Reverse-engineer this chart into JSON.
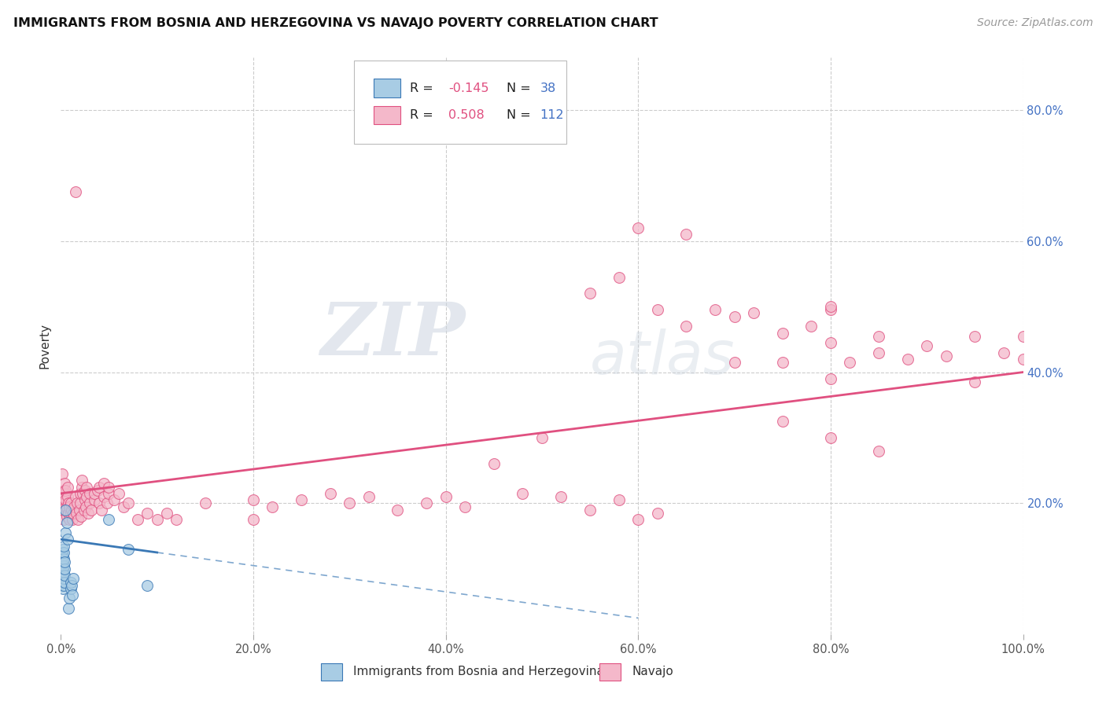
{
  "title": "IMMIGRANTS FROM BOSNIA AND HERZEGOVINA VS NAVAJO POVERTY CORRELATION CHART",
  "source": "Source: ZipAtlas.com",
  "ylabel": "Poverty",
  "xlim": [
    0.0,
    1.0
  ],
  "ylim": [
    0.0,
    0.88
  ],
  "blue_color": "#a8cce4",
  "pink_color": "#f4b8ca",
  "blue_line_color": "#3a78b5",
  "pink_line_color": "#e05080",
  "blue_scatter": [
    [
      0.001,
      0.075
    ],
    [
      0.001,
      0.085
    ],
    [
      0.001,
      0.095
    ],
    [
      0.001,
      0.105
    ],
    [
      0.001,
      0.115
    ],
    [
      0.001,
      0.125
    ],
    [
      0.002,
      0.07
    ],
    [
      0.002,
      0.08
    ],
    [
      0.002,
      0.09
    ],
    [
      0.002,
      0.1
    ],
    [
      0.002,
      0.11
    ],
    [
      0.002,
      0.12
    ],
    [
      0.002,
      0.13
    ],
    [
      0.003,
      0.075
    ],
    [
      0.003,
      0.085
    ],
    [
      0.003,
      0.095
    ],
    [
      0.003,
      0.105
    ],
    [
      0.003,
      0.115
    ],
    [
      0.003,
      0.125
    ],
    [
      0.003,
      0.135
    ],
    [
      0.004,
      0.08
    ],
    [
      0.004,
      0.09
    ],
    [
      0.004,
      0.1
    ],
    [
      0.004,
      0.11
    ],
    [
      0.005,
      0.155
    ],
    [
      0.005,
      0.19
    ],
    [
      0.006,
      0.17
    ],
    [
      0.007,
      0.145
    ],
    [
      0.008,
      0.04
    ],
    [
      0.009,
      0.055
    ],
    [
      0.01,
      0.07
    ],
    [
      0.01,
      0.08
    ],
    [
      0.011,
      0.075
    ],
    [
      0.012,
      0.06
    ],
    [
      0.013,
      0.085
    ],
    [
      0.05,
      0.175
    ],
    [
      0.07,
      0.13
    ],
    [
      0.09,
      0.075
    ]
  ],
  "pink_scatter": [
    [
      0.001,
      0.245
    ],
    [
      0.002,
      0.195
    ],
    [
      0.002,
      0.21
    ],
    [
      0.003,
      0.22
    ],
    [
      0.003,
      0.175
    ],
    [
      0.003,
      0.19
    ],
    [
      0.004,
      0.2
    ],
    [
      0.004,
      0.215
    ],
    [
      0.004,
      0.23
    ],
    [
      0.005,
      0.195
    ],
    [
      0.005,
      0.205
    ],
    [
      0.005,
      0.22
    ],
    [
      0.006,
      0.18
    ],
    [
      0.006,
      0.195
    ],
    [
      0.007,
      0.21
    ],
    [
      0.007,
      0.225
    ],
    [
      0.008,
      0.185
    ],
    [
      0.008,
      0.2
    ],
    [
      0.009,
      0.175
    ],
    [
      0.009,
      0.195
    ],
    [
      0.01,
      0.185
    ],
    [
      0.01,
      0.2
    ],
    [
      0.011,
      0.19
    ],
    [
      0.012,
      0.175
    ],
    [
      0.013,
      0.185
    ],
    [
      0.014,
      0.195
    ],
    [
      0.015,
      0.675
    ],
    [
      0.015,
      0.21
    ],
    [
      0.016,
      0.185
    ],
    [
      0.017,
      0.2
    ],
    [
      0.018,
      0.175
    ],
    [
      0.019,
      0.19
    ],
    [
      0.02,
      0.2
    ],
    [
      0.02,
      0.215
    ],
    [
      0.021,
      0.18
    ],
    [
      0.022,
      0.225
    ],
    [
      0.022,
      0.235
    ],
    [
      0.023,
      0.215
    ],
    [
      0.024,
      0.19
    ],
    [
      0.025,
      0.205
    ],
    [
      0.025,
      0.22
    ],
    [
      0.026,
      0.195
    ],
    [
      0.027,
      0.21
    ],
    [
      0.027,
      0.225
    ],
    [
      0.028,
      0.185
    ],
    [
      0.03,
      0.2
    ],
    [
      0.03,
      0.215
    ],
    [
      0.032,
      0.19
    ],
    [
      0.035,
      0.205
    ],
    [
      0.035,
      0.215
    ],
    [
      0.038,
      0.22
    ],
    [
      0.04,
      0.2
    ],
    [
      0.04,
      0.225
    ],
    [
      0.042,
      0.19
    ],
    [
      0.045,
      0.21
    ],
    [
      0.045,
      0.23
    ],
    [
      0.048,
      0.2
    ],
    [
      0.05,
      0.215
    ],
    [
      0.05,
      0.225
    ],
    [
      0.055,
      0.205
    ],
    [
      0.06,
      0.215
    ],
    [
      0.065,
      0.195
    ],
    [
      0.07,
      0.2
    ],
    [
      0.08,
      0.175
    ],
    [
      0.09,
      0.185
    ],
    [
      0.1,
      0.175
    ],
    [
      0.11,
      0.185
    ],
    [
      0.12,
      0.175
    ],
    [
      0.15,
      0.2
    ],
    [
      0.2,
      0.205
    ],
    [
      0.2,
      0.175
    ],
    [
      0.22,
      0.195
    ],
    [
      0.25,
      0.205
    ],
    [
      0.28,
      0.215
    ],
    [
      0.3,
      0.2
    ],
    [
      0.32,
      0.21
    ],
    [
      0.35,
      0.19
    ],
    [
      0.38,
      0.2
    ],
    [
      0.4,
      0.21
    ],
    [
      0.42,
      0.195
    ],
    [
      0.45,
      0.26
    ],
    [
      0.48,
      0.215
    ],
    [
      0.5,
      0.3
    ],
    [
      0.52,
      0.21
    ],
    [
      0.55,
      0.19
    ],
    [
      0.58,
      0.205
    ],
    [
      0.6,
      0.175
    ],
    [
      0.62,
      0.185
    ],
    [
      0.55,
      0.52
    ],
    [
      0.58,
      0.545
    ],
    [
      0.6,
      0.62
    ],
    [
      0.62,
      0.495
    ],
    [
      0.65,
      0.61
    ],
    [
      0.65,
      0.47
    ],
    [
      0.68,
      0.495
    ],
    [
      0.7,
      0.415
    ],
    [
      0.7,
      0.485
    ],
    [
      0.72,
      0.49
    ],
    [
      0.75,
      0.415
    ],
    [
      0.75,
      0.46
    ],
    [
      0.78,
      0.47
    ],
    [
      0.8,
      0.39
    ],
    [
      0.8,
      0.445
    ],
    [
      0.8,
      0.495
    ],
    [
      0.82,
      0.415
    ],
    [
      0.85,
      0.43
    ],
    [
      0.85,
      0.455
    ],
    [
      0.88,
      0.42
    ],
    [
      0.9,
      0.44
    ],
    [
      0.92,
      0.425
    ],
    [
      0.95,
      0.455
    ],
    [
      0.95,
      0.385
    ],
    [
      0.98,
      0.43
    ],
    [
      1.0,
      0.42
    ],
    [
      1.0,
      0.455
    ],
    [
      0.75,
      0.325
    ],
    [
      0.8,
      0.3
    ],
    [
      0.85,
      0.28
    ],
    [
      0.8,
      0.5
    ]
  ],
  "watermark_zip": "ZIP",
  "watermark_atlas": "atlas",
  "background_color": "#ffffff",
  "grid_color": "#cccccc",
  "right_tick_color": "#4472c4",
  "legend_R_color": "#e05080",
  "legend_N_color": "#4472c4"
}
